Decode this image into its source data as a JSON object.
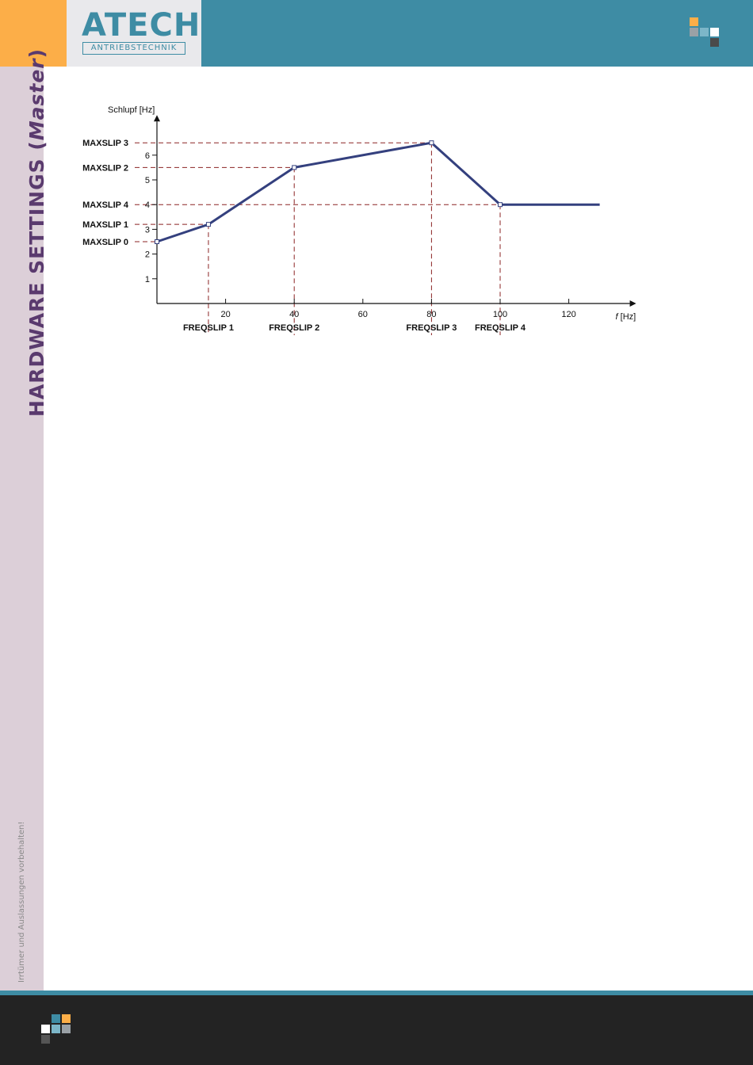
{
  "brand": {
    "name": "ATECH",
    "subtitle": "ANTRIEBSTECHNIK"
  },
  "colors": {
    "header_blue": "#3e8ca4",
    "accent_orange": "#fcae48",
    "sidebar_bg": "#dccfd8",
    "title_purple": "#5a3a6e",
    "curve": "#34407e",
    "guide_dashed": "#8b2323"
  },
  "sidebar": {
    "title_main": "HARDWARE SETTINGS (",
    "title_italic": "Master",
    "title_close": ")",
    "note": "Irrtümer und Auslassungen vorbehalten!"
  },
  "chart_data": {
    "type": "line",
    "title": "",
    "ylabel": "Schlupf [Hz]",
    "xlabel_italic": "f",
    "xlabel_unit": "[Hz]",
    "xlim": [
      0,
      135
    ],
    "ylim": [
      0,
      7.3
    ],
    "x_ticks": [
      20,
      40,
      60,
      80,
      100,
      120
    ],
    "y_ticks": [
      1,
      2,
      3,
      4,
      5,
      6
    ],
    "grid": false,
    "series": [
      {
        "x": [
          0,
          15,
          40,
          80,
          100,
          129
        ],
        "y": [
          2.5,
          3.2,
          5.5,
          6.5,
          4.0,
          4.0
        ]
      }
    ],
    "markers": [
      {
        "x": 0,
        "y": 2.5
      },
      {
        "x": 15,
        "y": 3.2
      },
      {
        "x": 40,
        "y": 5.5
      },
      {
        "x": 80,
        "y": 6.5
      },
      {
        "x": 100,
        "y": 4.0
      }
    ],
    "y_annotations": [
      {
        "label": "MAXSLIP 3",
        "y": 6.5,
        "x_end": 80
      },
      {
        "label": "MAXSLIP 2",
        "y": 5.5,
        "x_end": 40
      },
      {
        "label": "MAXSLIP 4",
        "y": 4.0,
        "x_end": 100
      },
      {
        "label": "MAXSLIP 1",
        "y": 3.2,
        "x_end": 15
      },
      {
        "label": "MAXSLIP 0",
        "y": 2.5,
        "x_end": 0
      }
    ],
    "x_annotations": [
      {
        "label": "FREQSLIP 1",
        "x": 15,
        "y_top": 3.2
      },
      {
        "label": "FREQSLIP 2",
        "x": 40,
        "y_top": 5.5
      },
      {
        "label": "FREQSLIP 3",
        "x": 80,
        "y_top": 6.5
      },
      {
        "label": "FREQSLIP 4",
        "x": 100,
        "y_top": 4.0
      }
    ]
  }
}
